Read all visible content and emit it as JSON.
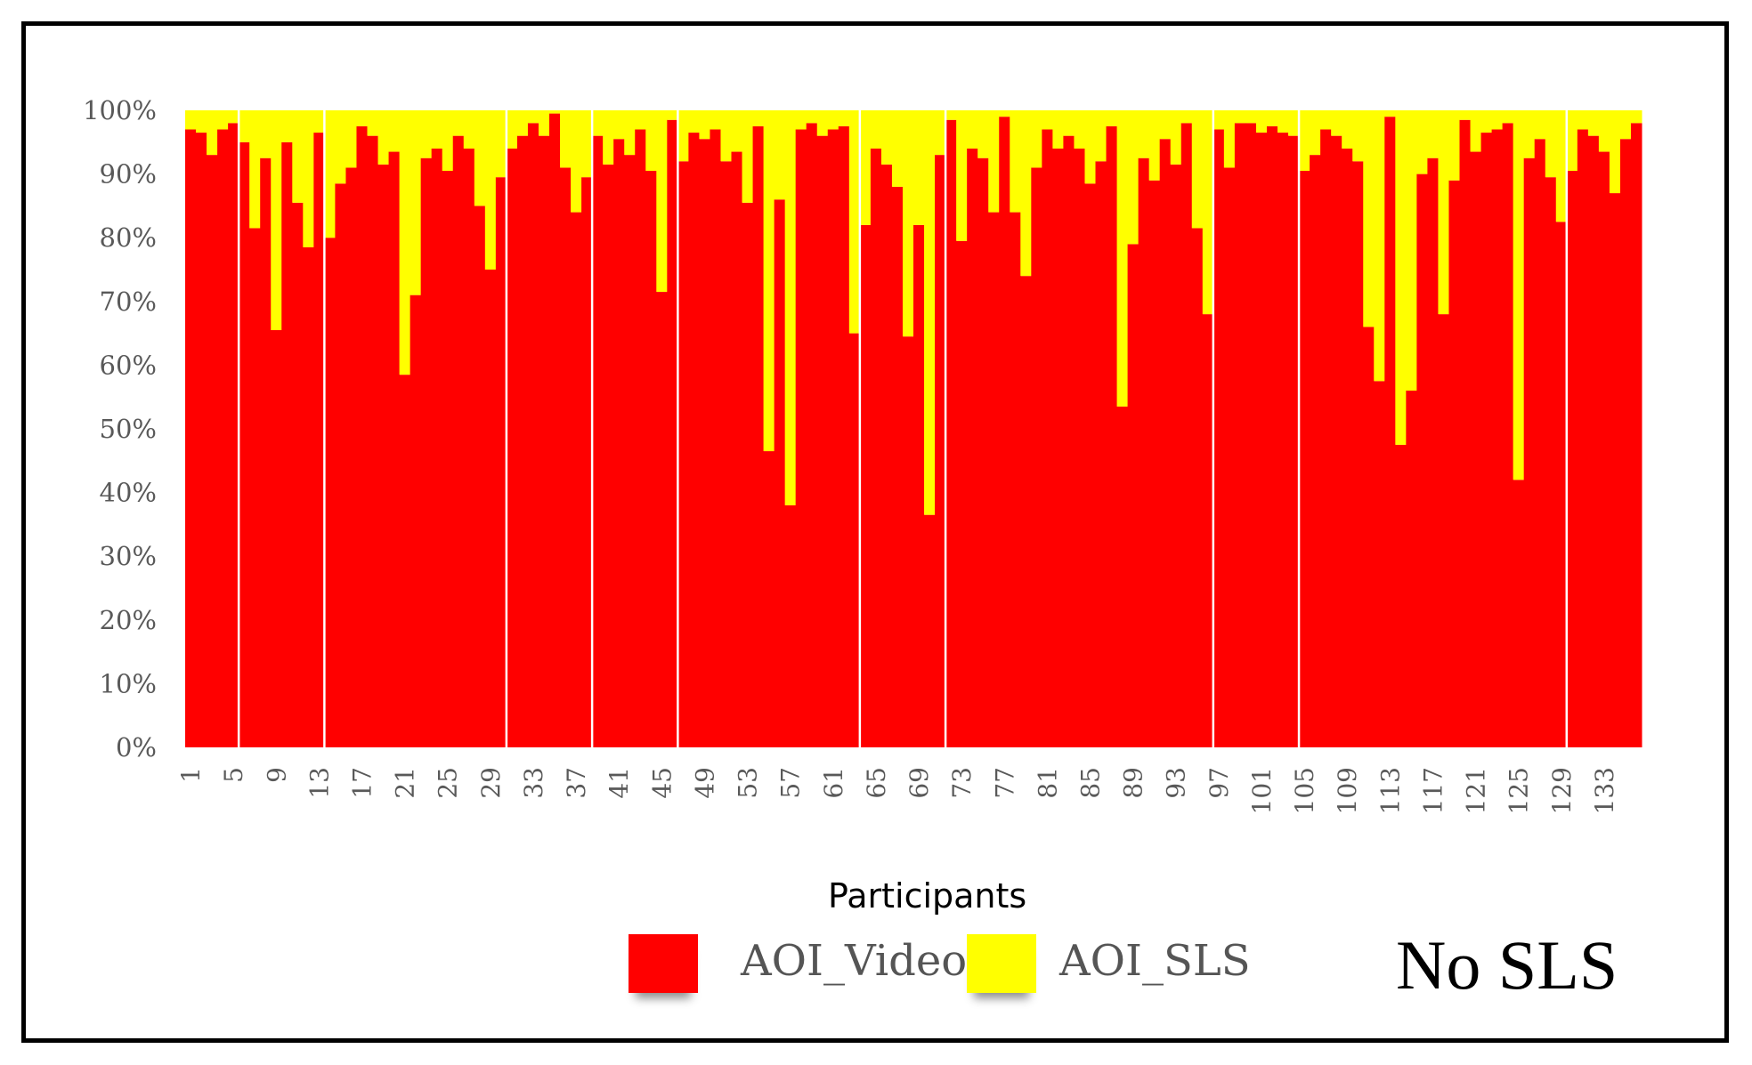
{
  "chart_data": {
    "type": "bar",
    "stacked": true,
    "normalized": true,
    "xlabel": "Participants",
    "ylim": [
      0,
      100
    ],
    "yticks": [
      "0%",
      "10%",
      "20%",
      "30%",
      "40%",
      "50%",
      "60%",
      "70%",
      "80%",
      "90%",
      "100%"
    ],
    "x_tick_labels": [
      "1",
      "5",
      "9",
      "13",
      "17",
      "21",
      "25",
      "29",
      "33",
      "37",
      "41",
      "45",
      "49",
      "53",
      "57",
      "61",
      "65",
      "69",
      "73",
      "77",
      "81",
      "85",
      "89",
      "93",
      "97",
      "101",
      "105",
      "109",
      "113",
      "117",
      "121",
      "125",
      "129",
      "133"
    ],
    "x_tick_positions": [
      1,
      5,
      9,
      13,
      17,
      21,
      25,
      29,
      33,
      37,
      41,
      45,
      49,
      53,
      57,
      61,
      65,
      69,
      73,
      77,
      81,
      85,
      89,
      93,
      97,
      101,
      105,
      109,
      113,
      117,
      121,
      125,
      129,
      133
    ],
    "categories": [
      1,
      2,
      3,
      4,
      5,
      6,
      7,
      8,
      9,
      10,
      11,
      12,
      13,
      14,
      15,
      16,
      17,
      18,
      19,
      20,
      21,
      22,
      23,
      24,
      25,
      26,
      27,
      28,
      29,
      30,
      31,
      32,
      33,
      34,
      35,
      36,
      37,
      38,
      39,
      40,
      41,
      42,
      43,
      44,
      45,
      46,
      47,
      48,
      49,
      50,
      51,
      52,
      53,
      54,
      55,
      56,
      57,
      58,
      59,
      60,
      61,
      62,
      63,
      64,
      65,
      66,
      67,
      68,
      69,
      70,
      71,
      72,
      73,
      74,
      75,
      76,
      77,
      78,
      79,
      80,
      81,
      82,
      83,
      84,
      85,
      86,
      87,
      88,
      89,
      90,
      91,
      92,
      93,
      94,
      95,
      96,
      97,
      98,
      99,
      100,
      101,
      102,
      103,
      104,
      105,
      106,
      107,
      108,
      109,
      110,
      111,
      112,
      113,
      114,
      115,
      116,
      117,
      118,
      119,
      120,
      121,
      122,
      123,
      124,
      125,
      126,
      127,
      128,
      129,
      130,
      131,
      132,
      133,
      134,
      135,
      136
    ],
    "group_separators_after": [
      5,
      13,
      30,
      38,
      46,
      63,
      71,
      96,
      104,
      129
    ],
    "series": [
      {
        "name": "AOI_Video",
        "color": "#ff0000",
        "values": [
          97,
          96.5,
          93,
          97,
          98,
          95,
          81.5,
          92.5,
          65.5,
          95,
          85.5,
          78.5,
          96.5,
          80,
          88.5,
          91,
          97.5,
          96,
          91.5,
          93.5,
          58.5,
          71,
          92.5,
          94,
          90.5,
          96,
          94,
          85,
          75,
          89.5,
          94,
          96,
          98,
          96,
          99.5,
          91,
          84,
          89.5,
          96,
          91.5,
          95.5,
          93,
          97,
          90.5,
          71.5,
          98.5,
          92,
          96.5,
          95.5,
          97,
          92,
          93.5,
          85.5,
          97.5,
          46.5,
          86,
          38,
          97,
          98,
          96,
          97,
          97.5,
          65,
          82,
          94,
          91.5,
          88,
          64.5,
          82,
          36.5,
          93,
          98.5,
          79.5,
          94,
          92.5,
          84,
          99,
          84,
          74,
          91,
          97,
          94,
          96,
          94,
          88.5,
          92,
          97.5,
          53.5,
          79,
          92.5,
          89,
          95.5,
          91.5,
          98,
          81.5,
          68,
          97,
          91,
          98,
          98,
          96.5,
          97.5,
          96.5,
          96,
          90.5,
          93,
          97,
          96,
          94,
          92,
          66,
          57.5,
          99,
          47.5,
          56,
          90,
          92.5,
          68,
          89,
          98.5,
          93.5,
          96.5,
          97,
          98,
          42,
          92.5,
          95.5,
          89.5,
          82.5,
          90.5,
          97,
          96,
          93.5,
          87,
          95.5,
          98
        ]
      },
      {
        "name": "AOI_SLS",
        "color": "#ffff00",
        "values": [
          3,
          3.5,
          7,
          3,
          2,
          5,
          18.5,
          7.5,
          34.5,
          5,
          14.5,
          21.5,
          3.5,
          20,
          11.5,
          9,
          2.5,
          4,
          8.5,
          6.5,
          41.5,
          29,
          7.5,
          6,
          9.5,
          4,
          6,
          15,
          25,
          10.5,
          6,
          4,
          2,
          4,
          0.5,
          9,
          16,
          10.5,
          4,
          8.5,
          4.5,
          7,
          3,
          9.5,
          28.5,
          1.5,
          8,
          3.5,
          4.5,
          3,
          8,
          6.5,
          14.5,
          2.5,
          53.5,
          14,
          62,
          3,
          2,
          4,
          3,
          2.5,
          35,
          18,
          6,
          8.5,
          12,
          35.5,
          18,
          63.5,
          7,
          1.5,
          20.5,
          6,
          7.5,
          16,
          1,
          16,
          26,
          9,
          3,
          6,
          4,
          6,
          11.5,
          8,
          2.5,
          46.5,
          21,
          7.5,
          11,
          4.5,
          8.5,
          2,
          18.5,
          32,
          3,
          9,
          2,
          2,
          3.5,
          2.5,
          3.5,
          4,
          9.5,
          7,
          3,
          4,
          6,
          8,
          34,
          42.5,
          1,
          52.5,
          44,
          10,
          7.5,
          32,
          11,
          1.5,
          6.5,
          3.5,
          3,
          2,
          58,
          7.5,
          4.5,
          10.5,
          17.5,
          9.5,
          3,
          4,
          6.5,
          13,
          4.5,
          2
        ]
      }
    ],
    "legend": {
      "position": "bottom",
      "entries": [
        "AOI_Video",
        "AOI_SLS"
      ]
    },
    "annotation": "No SLS"
  }
}
